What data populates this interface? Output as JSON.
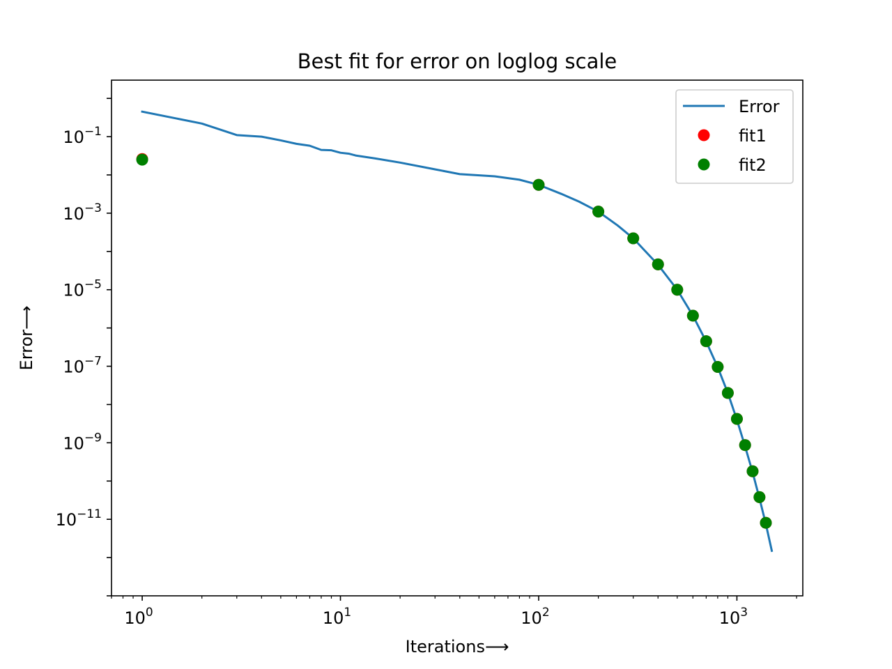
{
  "chart_data": {
    "type": "line",
    "title": "Best fit for error on loglog scale",
    "xlabel": "Iterations⟶",
    "ylabel": "Error⟶",
    "xscale": "log",
    "yscale": "log",
    "xlim": [
      0.7,
      2150
    ],
    "ylim": [
      1e-13,
      3
    ],
    "xticks": [
      {
        "base": "10",
        "exp": "0"
      },
      {
        "base": "10",
        "exp": "1"
      },
      {
        "base": "10",
        "exp": "2"
      },
      {
        "base": "10",
        "exp": "3"
      }
    ],
    "yticks": [
      {
        "base": "10",
        "exp": "−1"
      },
      {
        "base": "10",
        "exp": "−3"
      },
      {
        "base": "10",
        "exp": "−5"
      },
      {
        "base": "10",
        "exp": "−7"
      },
      {
        "base": "10",
        "exp": "−9"
      },
      {
        "base": "10",
        "exp": "−11"
      }
    ],
    "grid": false,
    "legend_position": "top-right",
    "series": [
      {
        "name": "Error",
        "kind": "line",
        "color": "#1f77b4",
        "x": [
          1,
          2,
          3,
          4,
          5,
          6,
          7,
          8,
          9,
          10,
          11,
          12,
          15,
          20,
          30,
          40,
          60,
          80,
          100,
          130,
          160,
          200,
          250,
          300,
          400,
          500,
          600,
          700,
          800,
          900,
          1000,
          1100,
          1200,
          1300,
          1400,
          1500
        ],
        "y": [
          0.45,
          0.22,
          0.11,
          0.1,
          0.08,
          0.065,
          0.058,
          0.045,
          0.044,
          0.038,
          0.036,
          0.032,
          0.027,
          0.021,
          0.014,
          0.0105,
          0.0092,
          0.0075,
          0.0055,
          0.0032,
          0.002,
          0.0011,
          0.00048,
          0.00022,
          4.5e-05,
          1e-05,
          2.1e-06,
          4.4e-07,
          9.5e-08,
          2e-08,
          4e-09,
          8e-10,
          1.7e-10,
          3.5e-11,
          7.5e-12,
          1.5e-12
        ]
      },
      {
        "name": "fit1",
        "kind": "scatter",
        "color": "#ff0000",
        "x": [
          1,
          100,
          200,
          300,
          400,
          500,
          600,
          700,
          800,
          900,
          1000,
          1100,
          1200,
          1300,
          1400
        ],
        "y": [
          0.026,
          0.0055,
          0.0011,
          0.00022,
          4.6e-05,
          1e-05,
          2.1e-06,
          4.5e-07,
          9.6e-08,
          2e-08,
          4.2e-09,
          8.7e-10,
          1.8e-10,
          3.8e-11,
          8.1e-12
        ]
      },
      {
        "name": "fit2",
        "kind": "scatter",
        "color": "#008000",
        "x": [
          1,
          100,
          200,
          300,
          400,
          500,
          600,
          700,
          800,
          900,
          1000,
          1100,
          1200,
          1300,
          1400
        ],
        "y": [
          0.025,
          0.0055,
          0.0011,
          0.00022,
          4.6e-05,
          1e-05,
          2.1e-06,
          4.5e-07,
          9.6e-08,
          2e-08,
          4.2e-09,
          8.7e-10,
          1.8e-10,
          3.8e-11,
          8.1e-12
        ]
      }
    ]
  }
}
